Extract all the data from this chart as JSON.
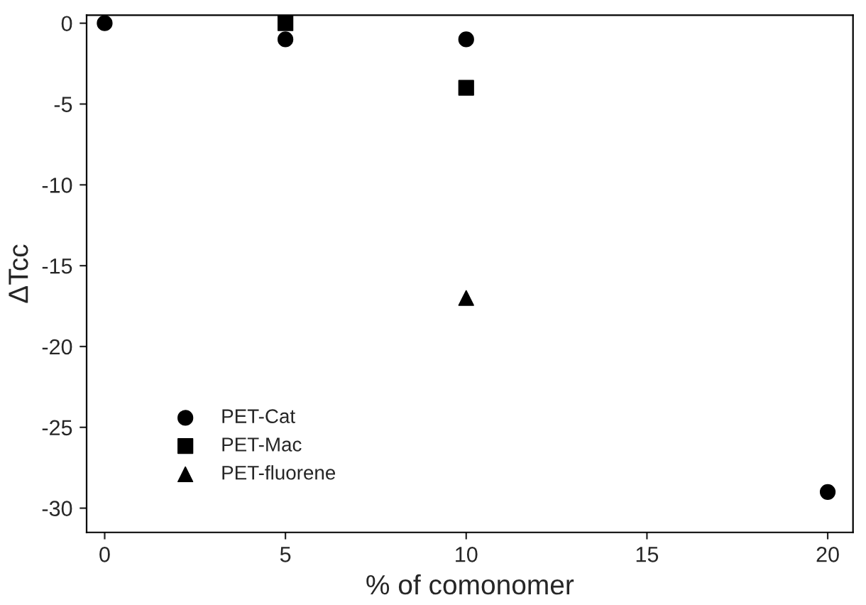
{
  "chart_data": {
    "type": "scatter",
    "xlabel": "% of comonomer",
    "ylabel": "ΔTcc",
    "xlim": [
      -0.5,
      20.7
    ],
    "xticks": [
      0,
      5,
      10,
      15,
      20
    ],
    "ylim": [
      -31.5,
      0.5
    ],
    "yticks": [
      -30,
      -25,
      -20,
      -15,
      -10,
      -5,
      0
    ],
    "grid": false,
    "legend": "bottom left",
    "series": [
      {
        "name": "PET-Cat",
        "color": "#000000",
        "marker": "circle",
        "x": [
          0,
          5,
          10,
          20
        ],
        "values": [
          0,
          -1,
          -1,
          -29
        ]
      },
      {
        "name": "PET-Mac",
        "color": "#000000",
        "marker": "square",
        "x": [
          5,
          10
        ],
        "values": [
          0,
          -4
        ]
      },
      {
        "name": "PET-fluorene",
        "color": "#000000",
        "marker": "triangle",
        "x": [
          10
        ],
        "values": [
          -17
        ]
      }
    ]
  }
}
